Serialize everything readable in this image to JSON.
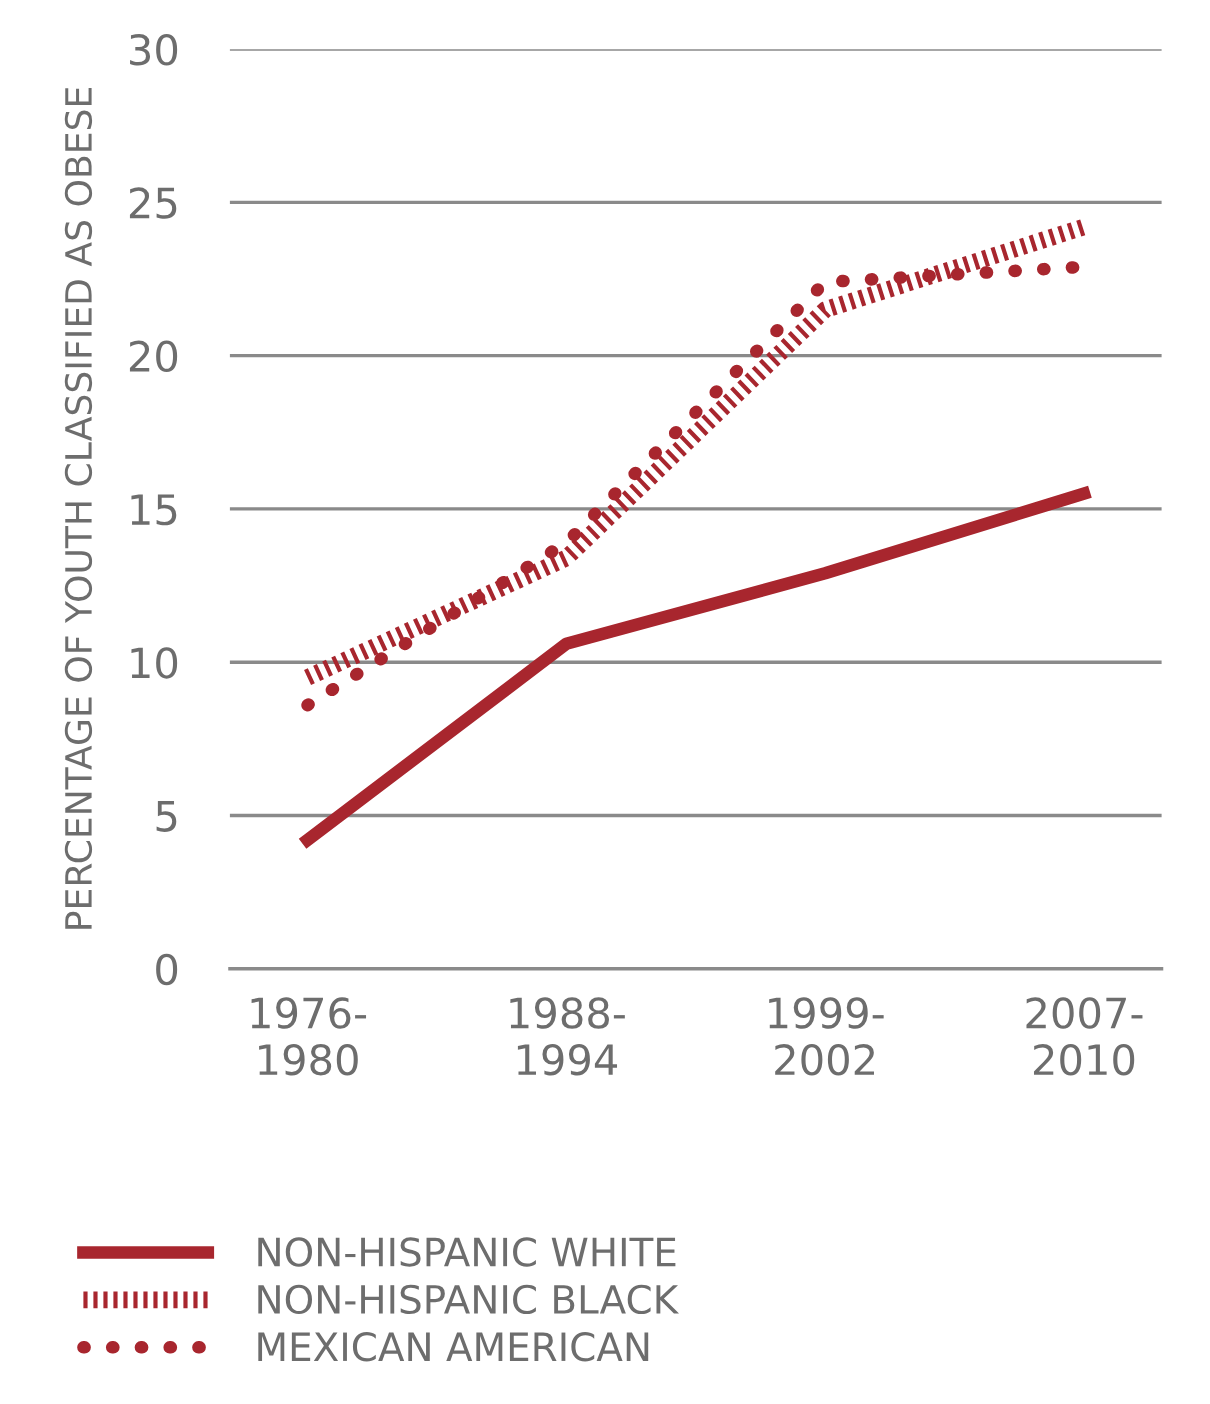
{
  "chart_data": {
    "type": "line",
    "ylabel": "PERCENTAGE OF YOUTH CLASSIFIED AS OBESE",
    "categories": [
      "1976-\n1980",
      "1988-\n1994",
      "1999-\n2002",
      "2007-\n2010"
    ],
    "series": [
      {
        "name": "NON-HISPANIC WHITE",
        "color": "#a8262e",
        "line_style": "solid",
        "values": [
          4.2,
          10.6,
          12.9,
          15.5
        ]
      },
      {
        "name": "NON-HISPANIC BLACK",
        "color": "#a8262e",
        "line_style": "dashed",
        "values": [
          9.5,
          13.4,
          21.5,
          24.2
        ]
      },
      {
        "name": "MEXICAN AMERICAN",
        "color": "#a8262e",
        "line_style": "dotted",
        "values": [
          8.6,
          13.9,
          22.4,
          22.9
        ]
      }
    ],
    "ylim": [
      0,
      30
    ],
    "yticks": [
      0,
      5,
      10,
      15,
      20,
      25,
      30
    ],
    "grid": "y",
    "legend": "bottom left",
    "marker": "none"
  }
}
